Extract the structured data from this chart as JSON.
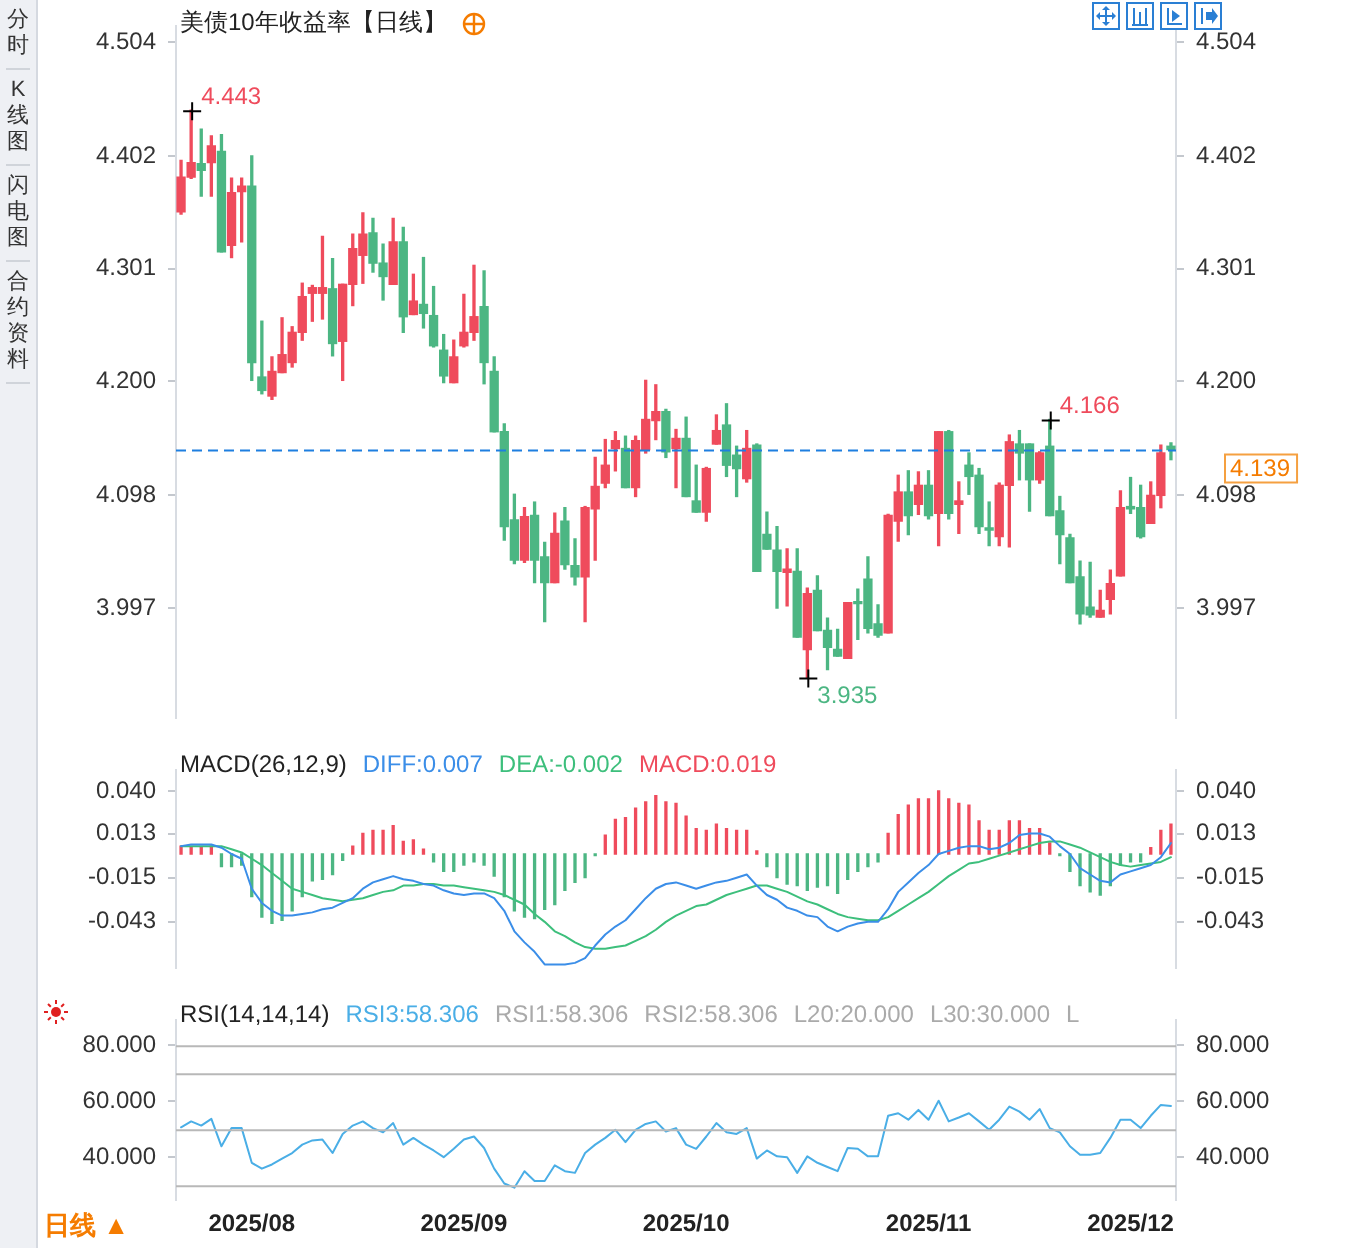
{
  "chart_data": [
    {
      "type": "candlestick",
      "title": "美债10年收益率【日线】",
      "categories": [
        null,
        null,
        null,
        null,
        null,
        null,
        null,
        null,
        null,
        null,
        null,
        null,
        null,
        null,
        null,
        null,
        null,
        null,
        null,
        null,
        null,
        null,
        null,
        null,
        null,
        null,
        null,
        null,
        null,
        null,
        null,
        null,
        null,
        null,
        null,
        null,
        null,
        null,
        null,
        null,
        null,
        null,
        null,
        null,
        null,
        null,
        null,
        null,
        null,
        null,
        null,
        null,
        null,
        null,
        null,
        null,
        null,
        null,
        null,
        null,
        null,
        null,
        null,
        null,
        null,
        null,
        null,
        null,
        null,
        null,
        null,
        null,
        null,
        null,
        null,
        null,
        null,
        null,
        null,
        null,
        null,
        null,
        null,
        null,
        null,
        null,
        null,
        null,
        null,
        null,
        null,
        null,
        null,
        null,
        null,
        null,
        null,
        null,
        null
      ],
      "ohlc": [
        [
          4.352,
          4.398,
          4.35,
          4.383
        ],
        [
          4.383,
          4.443,
          4.382,
          4.396
        ],
        [
          4.395,
          4.426,
          4.366,
          4.389
        ],
        [
          4.396,
          4.42,
          4.366,
          4.411
        ],
        [
          4.406,
          4.421,
          4.316,
          4.316
        ],
        [
          4.322,
          4.382,
          4.311,
          4.369
        ],
        [
          4.37,
          4.382,
          4.325,
          4.375
        ],
        [
          4.375,
          4.402,
          4.201,
          4.217
        ],
        [
          4.204,
          4.254,
          4.189,
          4.192
        ],
        [
          4.187,
          4.222,
          4.184,
          4.209
        ],
        [
          4.208,
          4.257,
          4.208,
          4.224
        ],
        [
          4.217,
          4.249,
          4.213,
          4.244
        ],
        [
          4.244,
          4.288,
          4.237,
          4.276
        ],
        [
          4.279,
          4.286,
          4.254,
          4.284
        ],
        [
          4.279,
          4.33,
          4.256,
          4.284
        ],
        [
          4.283,
          4.31,
          4.223,
          4.234
        ],
        [
          4.236,
          4.287,
          4.201,
          4.287
        ],
        [
          4.287,
          4.332,
          4.268,
          4.319
        ],
        [
          4.313,
          4.351,
          4.288,
          4.332
        ],
        [
          4.333,
          4.346,
          4.298,
          4.306
        ],
        [
          4.306,
          4.323,
          4.273,
          4.294
        ],
        [
          4.287,
          4.346,
          4.287,
          4.325
        ],
        [
          4.325,
          4.338,
          4.244,
          4.258
        ],
        [
          4.26,
          4.296,
          4.26,
          4.272
        ],
        [
          4.269,
          4.311,
          4.248,
          4.261
        ],
        [
          4.259,
          4.285,
          4.231,
          4.232
        ],
        [
          4.228,
          4.242,
          4.199,
          4.205
        ],
        [
          4.199,
          4.237,
          4.199,
          4.222
        ],
        [
          4.232,
          4.278,
          4.231,
          4.244
        ],
        [
          4.244,
          4.304,
          4.237,
          4.258
        ],
        [
          4.267,
          4.299,
          4.198,
          4.217
        ],
        [
          4.209,
          4.222,
          4.155,
          4.155
        ],
        [
          4.155,
          4.162,
          4.058,
          4.07
        ],
        [
          4.076,
          4.099,
          4.037,
          4.04
        ],
        [
          4.04,
          4.087,
          4.038,
          4.079
        ],
        [
          4.08,
          4.092,
          4.02,
          4.04
        ],
        [
          4.043,
          4.056,
          3.985,
          4.02
        ],
        [
          4.02,
          4.082,
          4.02,
          4.064
        ],
        [
          4.075,
          4.087,
          4.032,
          4.036
        ],
        [
          4.035,
          4.059,
          4.018,
          4.025
        ],
        [
          4.025,
          4.088,
          3.985,
          4.087
        ],
        [
          4.086,
          4.132,
          4.04,
          4.106
        ],
        [
          4.109,
          4.148,
          4.105,
          4.125
        ],
        [
          4.14,
          4.155,
          4.12,
          4.147
        ],
        [
          4.14,
          4.151,
          4.105,
          4.105
        ],
        [
          4.105,
          4.151,
          4.097,
          4.147
        ],
        [
          4.139,
          4.201,
          4.136,
          4.166
        ],
        [
          4.165,
          4.197,
          4.148,
          4.173
        ],
        [
          4.173,
          4.175,
          4.132,
          4.137
        ],
        [
          4.14,
          4.157,
          4.105,
          4.149
        ],
        [
          4.149,
          4.168,
          4.097,
          4.097
        ],
        [
          4.093,
          4.125,
          4.083,
          4.083
        ],
        [
          4.083,
          4.123,
          4.075,
          4.122
        ],
        [
          4.144,
          4.17,
          4.144,
          4.156
        ],
        [
          4.161,
          4.18,
          4.115,
          4.125
        ],
        [
          4.134,
          4.142,
          4.097,
          4.122
        ],
        [
          4.113,
          4.156,
          4.11,
          4.14
        ],
        [
          4.143,
          4.144,
          4.03,
          4.03
        ],
        [
          4.063,
          4.083,
          4.05,
          4.05
        ],
        [
          4.049,
          4.07,
          3.997,
          4.03
        ],
        [
          4.029,
          4.05,
          3.999,
          4.032
        ],
        [
          4.03,
          4.05,
          3.971,
          3.971
        ],
        [
          3.96,
          4.015,
          3.935,
          4.01
        ],
        [
          4.013,
          4.026,
          3.977,
          3.977
        ],
        [
          3.977,
          3.988,
          3.942,
          3.962
        ],
        [
          3.96,
          3.978,
          3.954,
          3.954
        ],
        [
          3.952,
          4.002,
          3.952,
          4.002
        ],
        [
          4.002,
          4.014,
          3.969,
          4.001
        ],
        [
          4.023,
          4.043,
          3.975,
          3.979
        ],
        [
          3.983,
          4.0,
          3.971,
          3.973
        ],
        [
          3.975,
          4.081,
          3.975,
          4.08
        ],
        [
          4.075,
          4.116,
          4.057,
          4.101
        ],
        [
          4.101,
          4.12,
          4.063,
          4.08
        ],
        [
          4.09,
          4.119,
          4.081,
          4.107
        ],
        [
          4.107,
          4.12,
          4.077,
          4.08
        ],
        [
          4.082,
          4.155,
          4.053,
          4.155
        ],
        [
          4.155,
          4.156,
          4.077,
          4.082
        ],
        [
          4.09,
          4.11,
          4.064,
          4.093
        ],
        [
          4.125,
          4.136,
          4.099,
          4.115
        ],
        [
          4.116,
          4.122,
          4.064,
          4.07
        ],
        [
          4.068,
          4.092,
          4.053,
          4.067
        ],
        [
          4.061,
          4.109,
          4.053,
          4.107
        ],
        [
          4.107,
          4.152,
          4.052,
          4.146
        ],
        [
          4.144,
          4.156,
          4.112,
          4.136
        ],
        [
          4.144,
          4.144,
          4.084,
          4.112
        ],
        [
          4.112,
          4.137,
          4.109,
          4.136
        ],
        [
          4.142,
          4.166,
          4.08,
          4.08
        ],
        [
          4.084,
          4.097,
          4.037,
          4.063
        ],
        [
          4.06,
          4.063,
          4.02,
          4.02
        ],
        [
          4.025,
          4.039,
          3.983,
          3.992
        ],
        [
          3.998,
          4.038,
          3.989,
          3.991
        ],
        [
          3.989,
          4.013,
          3.989,
          3.995
        ],
        [
          4.005,
          4.031,
          3.992,
          4.019
        ],
        [
          4.026,
          4.102,
          4.026,
          4.087
        ],
        [
          4.088,
          4.114,
          4.082,
          4.086
        ],
        [
          4.087,
          4.107,
          4.06,
          4.061
        ],
        [
          4.073,
          4.11,
          4.073,
          4.098
        ],
        [
          4.098,
          4.143,
          4.087,
          4.136
        ],
        [
          4.142,
          4.145,
          4.13,
          4.139
        ]
      ],
      "colors": [
        "#ef4b5c",
        "#ef4b5c",
        "#4cb683",
        "#ef4b5c",
        "#4cb683",
        "#ef4b5c",
        "#ef4b5c",
        "#4cb683",
        "#4cb683",
        "#ef4b5c",
        "#ef4b5c",
        "#ef4b5c",
        "#ef4b5c",
        "#ef4b5c",
        "#ef4b5c",
        "#4cb683",
        "#ef4b5c",
        "#ef4b5c",
        "#ef4b5c",
        "#4cb683",
        "#4cb683",
        "#ef4b5c",
        "#4cb683",
        "#ef4b5c",
        "#4cb683",
        "#4cb683",
        "#4cb683",
        "#ef4b5c",
        "#ef4b5c",
        "#ef4b5c",
        "#4cb683",
        "#4cb683",
        "#4cb683",
        "#4cb683",
        "#ef4b5c",
        "#4cb683",
        "#4cb683",
        "#ef4b5c",
        "#4cb683",
        "#4cb683",
        "#ef4b5c",
        "#ef4b5c",
        "#ef4b5c",
        "#ef4b5c",
        "#4cb683",
        "#ef4b5c",
        "#ef4b5c",
        "#ef4b5c",
        "#4cb683",
        "#ef4b5c",
        "#4cb683",
        "#4cb683",
        "#ef4b5c",
        "#ef4b5c",
        "#4cb683",
        "#4cb683",
        "#ef4b5c",
        "#4cb683",
        "#4cb683",
        "#4cb683",
        "#ef4b5c",
        "#4cb683",
        "#ef4b5c",
        "#4cb683",
        "#4cb683",
        "#4cb683",
        "#ef4b5c",
        "#4cb683",
        "#4cb683",
        "#4cb683",
        "#ef4b5c",
        "#ef4b5c",
        "#4cb683",
        "#ef4b5c",
        "#4cb683",
        "#ef4b5c",
        "#4cb683",
        "#ef4b5c",
        "#4cb683",
        "#4cb683",
        "#4cb683",
        "#ef4b5c",
        "#ef4b5c",
        "#4cb683",
        "#4cb683",
        "#ef4b5c",
        "#4cb683",
        "#4cb683",
        "#4cb683",
        "#4cb683",
        "#4cb683",
        "#ef4b5c",
        "#ef4b5c",
        "#ef4b5c",
        "#4cb683",
        "#4cb683",
        "#ef4b5c",
        "#ef4b5c",
        "#4cb683"
      ],
      "ylim": [
        3.899,
        4.518
      ],
      "yticks": [
        4.504,
        4.402,
        4.301,
        {
          "value": 4.2,
          "label": "4.200"
        },
        4.098,
        3.997
      ],
      "y2lim": [
        3.899,
        4.518
      ],
      "y2ticks": [
        4.504,
        4.402,
        4.301,
        {
          "value": 4.2,
          "label": "4.200"
        },
        4.098,
        3.997
      ],
      "tick_labels": "y",
      "ref_lines": [
        {
          "axis": "y",
          "value": 4.139,
          "label": "4.139",
          "color": "#1e7fe0",
          "line_style": "dashed"
        }
      ],
      "annotations": [
        "4.443",
        "4.166",
        "3.935",
        "分时",
        "K线图",
        "闪电图",
        "合约资料",
        "日线 ▲"
      ]
    },
    {
      "type": "bar",
      "title": "MACD(26,12,9)",
      "categories": [
        null,
        null,
        null,
        null,
        null,
        null,
        null,
        null,
        null,
        null,
        null,
        null,
        null,
        null,
        null,
        null,
        null,
        null,
        null,
        null,
        null,
        null,
        null,
        null,
        null,
        null,
        null,
        null,
        null,
        null,
        null,
        null,
        null,
        null,
        null,
        null,
        null,
        null,
        null,
        null,
        null,
        null,
        null,
        null,
        null,
        null,
        null,
        null,
        null,
        null,
        null,
        null,
        null,
        null,
        null,
        null,
        null,
        null,
        null,
        null,
        null,
        null,
        null,
        null,
        null,
        null,
        null,
        null,
        null,
        null,
        null,
        null,
        null,
        null,
        null,
        null,
        null,
        null,
        null,
        null,
        null,
        null,
        null,
        null,
        null,
        null,
        null,
        null,
        null,
        null,
        null,
        null,
        null,
        null,
        null,
        null,
        null,
        null,
        null
      ],
      "series": [
        {
          "name": "DIFF:0.007",
          "type": "line",
          "color": "#3b8ee8",
          "values": [
            0.005,
            0.006,
            0.006,
            0.006,
            0.004,
            0.0,
            -0.003,
            -0.022,
            -0.031,
            -0.036,
            -0.039,
            -0.039,
            -0.038,
            -0.037,
            -0.035,
            -0.034,
            -0.031,
            -0.028,
            -0.022,
            -0.018,
            -0.016,
            -0.014,
            -0.016,
            -0.017,
            -0.019,
            -0.02,
            -0.023,
            -0.025,
            -0.026,
            -0.025,
            -0.025,
            -0.028,
            -0.036,
            -0.049,
            -0.056,
            -0.062,
            -0.07,
            -0.07,
            -0.07,
            -0.069,
            -0.066,
            -0.058,
            -0.051,
            -0.046,
            -0.042,
            -0.035,
            -0.028,
            -0.022,
            -0.019,
            -0.018,
            -0.02,
            -0.022,
            -0.02,
            -0.018,
            -0.017,
            -0.015,
            -0.013,
            -0.02,
            -0.026,
            -0.029,
            -0.034,
            -0.036,
            -0.039,
            -0.04,
            -0.046,
            -0.049,
            -0.046,
            -0.044,
            -0.043,
            -0.043,
            -0.035,
            -0.024,
            -0.018,
            -0.012,
            -0.007,
            0.0,
            0.002,
            0.004,
            0.005,
            0.005,
            0.003,
            0.004,
            0.007,
            0.012,
            0.013,
            0.013,
            0.011,
            0.005,
            0.0,
            -0.009,
            -0.013,
            -0.017,
            -0.018,
            -0.013,
            -0.011,
            -0.009,
            -0.007,
            -0.002,
            0.007
          ]
        },
        {
          "name": "DEA:-0.002",
          "type": "line",
          "color": "#3dbf7c",
          "values": [
            0.005,
            0.005,
            0.005,
            0.005,
            0.005,
            0.003,
            0.001,
            -0.003,
            -0.007,
            -0.012,
            -0.017,
            -0.022,
            -0.024,
            -0.026,
            -0.028,
            -0.029,
            -0.03,
            -0.029,
            -0.028,
            -0.026,
            -0.024,
            -0.023,
            -0.02,
            -0.02,
            -0.019,
            -0.019,
            -0.02,
            -0.02,
            -0.021,
            -0.022,
            -0.023,
            -0.024,
            -0.026,
            -0.029,
            -0.032,
            -0.038,
            -0.043,
            -0.049,
            -0.052,
            -0.056,
            -0.059,
            -0.06,
            -0.06,
            -0.059,
            -0.058,
            -0.055,
            -0.052,
            -0.048,
            -0.043,
            -0.039,
            -0.036,
            -0.033,
            -0.032,
            -0.029,
            -0.026,
            -0.024,
            -0.022,
            -0.02,
            -0.02,
            -0.022,
            -0.024,
            -0.027,
            -0.03,
            -0.032,
            -0.035,
            -0.038,
            -0.04,
            -0.041,
            -0.042,
            -0.042,
            -0.04,
            -0.036,
            -0.032,
            -0.028,
            -0.024,
            -0.019,
            -0.014,
            -0.01,
            -0.006,
            -0.005,
            -0.003,
            -0.001,
            0.001,
            0.003,
            0.005,
            0.007,
            0.008,
            0.008,
            0.006,
            0.004,
            0.001,
            -0.002,
            -0.005,
            -0.007,
            -0.008,
            -0.007,
            -0.006,
            -0.005,
            -0.002
          ]
        },
        {
          "name": "MACD:0.019",
          "values": [
            0.005,
            0.004,
            0.004,
            0.005,
            -0.008,
            -0.008,
            -0.007,
            -0.027,
            -0.04,
            -0.044,
            -0.042,
            -0.036,
            -0.027,
            -0.017,
            -0.016,
            -0.013,
            -0.004,
            0.005,
            0.013,
            0.015,
            0.015,
            0.018,
            0.008,
            0.009,
            0.003,
            -0.005,
            -0.011,
            -0.011,
            -0.007,
            -0.005,
            -0.007,
            -0.014,
            -0.027,
            -0.036,
            -0.04,
            -0.041,
            -0.035,
            -0.032,
            -0.023,
            -0.018,
            -0.015,
            -0.001,
            0.012,
            0.022,
            0.023,
            0.029,
            0.033,
            0.037,
            0.033,
            0.032,
            0.024,
            0.016,
            0.015,
            0.019,
            0.016,
            0.015,
            0.015,
            0.002,
            -0.008,
            -0.015,
            -0.019,
            -0.02,
            -0.023,
            -0.021,
            -0.02,
            -0.025,
            -0.016,
            -0.011,
            -0.008,
            -0.005,
            0.013,
            0.025,
            0.031,
            0.035,
            0.035,
            0.04,
            0.035,
            0.032,
            0.031,
            0.021,
            0.015,
            0.015,
            0.021,
            0.021,
            0.016,
            0.016,
            0.007,
            -0.001,
            -0.011,
            -0.02,
            -0.024,
            -0.026,
            -0.02,
            -0.007,
            -0.005,
            -0.005,
            0.004,
            0.015,
            0.019
          ],
          "colors": [
            "#ef4b5c",
            "#ef4b5c",
            "#ef4b5c",
            "#ef4b5c",
            "#4cb683",
            "#4cb683",
            "#4cb683",
            "#4cb683",
            "#4cb683",
            "#4cb683",
            "#4cb683",
            "#4cb683",
            "#4cb683",
            "#4cb683",
            "#4cb683",
            "#4cb683",
            "#4cb683",
            "#ef4b5c",
            "#ef4b5c",
            "#ef4b5c",
            "#ef4b5c",
            "#ef4b5c",
            "#ef4b5c",
            "#ef4b5c",
            "#ef4b5c",
            "#4cb683",
            "#4cb683",
            "#4cb683",
            "#4cb683",
            "#4cb683",
            "#4cb683",
            "#4cb683",
            "#4cb683",
            "#4cb683",
            "#4cb683",
            "#4cb683",
            "#4cb683",
            "#4cb683",
            "#4cb683",
            "#4cb683",
            "#4cb683",
            "#4cb683",
            "#ef4b5c",
            "#ef4b5c",
            "#ef4b5c",
            "#ef4b5c",
            "#ef4b5c",
            "#ef4b5c",
            "#ef4b5c",
            "#ef4b5c",
            "#ef4b5c",
            "#ef4b5c",
            "#ef4b5c",
            "#ef4b5c",
            "#ef4b5c",
            "#ef4b5c",
            "#ef4b5c",
            "#ef4b5c",
            "#4cb683",
            "#4cb683",
            "#4cb683",
            "#4cb683",
            "#4cb683",
            "#4cb683",
            "#4cb683",
            "#4cb683",
            "#4cb683",
            "#4cb683",
            "#4cb683",
            "#4cb683",
            "#ef4b5c",
            "#ef4b5c",
            "#ef4b5c",
            "#ef4b5c",
            "#ef4b5c",
            "#ef4b5c",
            "#ef4b5c",
            "#ef4b5c",
            "#ef4b5c",
            "#ef4b5c",
            "#ef4b5c",
            "#ef4b5c",
            "#ef4b5c",
            "#ef4b5c",
            "#ef4b5c",
            "#ef4b5c",
            "#ef4b5c",
            "#4cb683",
            "#4cb683",
            "#4cb683",
            "#4cb683",
            "#4cb683",
            "#4cb683",
            "#4cb683",
            "#4cb683",
            "#4cb683",
            "#ef4b5c",
            "#ef4b5c",
            "#ef4b5c"
          ]
        }
      ],
      "ylim": [
        -0.072,
        0.053
      ],
      "yticks": [
        {
          "value": 0.04,
          "label": "0.040"
        },
        0.013,
        -0.015,
        -0.043
      ],
      "y2lim": [
        -0.072,
        0.053
      ],
      "y2ticks": [
        {
          "value": 0.04,
          "label": "0.040"
        },
        0.013,
        -0.015,
        -0.043
      ],
      "tick_labels": "y"
    },
    {
      "type": "line",
      "title": "RSI(14,14,14)",
      "categories": [
        null,
        null,
        null,
        null,
        null,
        null,
        null,
        "2025/08",
        null,
        null,
        null,
        null,
        null,
        null,
        null,
        null,
        null,
        null,
        null,
        null,
        null,
        null,
        null,
        null,
        null,
        null,
        null,
        null,
        "2025/09",
        null,
        null,
        null,
        null,
        null,
        null,
        null,
        null,
        null,
        null,
        null,
        null,
        null,
        null,
        null,
        null,
        null,
        null,
        null,
        null,
        null,
        "2025/10",
        null,
        null,
        null,
        null,
        null,
        null,
        null,
        null,
        null,
        null,
        null,
        null,
        null,
        null,
        null,
        null,
        null,
        null,
        null,
        null,
        null,
        null,
        null,
        "2025/11",
        null,
        null,
        null,
        null,
        null,
        null,
        null,
        null,
        null,
        null,
        null,
        null,
        null,
        null,
        null,
        null,
        null,
        null,
        null,
        "2025/12",
        null,
        null,
        null,
        null
      ],
      "series": [
        {
          "name": "RSI3:58.306",
          "color": "#4aaee6",
          "values": [
            50.7,
            52.8,
            51.3,
            53.7,
            43.9,
            50.4,
            50.4,
            38.0,
            35.9,
            37.4,
            39.5,
            41.5,
            44.5,
            46.0,
            46.3,
            41.5,
            48.3,
            51.3,
            52.8,
            50.4,
            48.9,
            52.2,
            44.5,
            46.9,
            44.5,
            42.4,
            40.0,
            43.0,
            46.3,
            47.4,
            43.3,
            35.9,
            30.6,
            29.1,
            35.0,
            31.5,
            31.5,
            37.1,
            35.0,
            34.4,
            41.5,
            44.5,
            46.9,
            49.8,
            45.4,
            49.8,
            51.9,
            52.8,
            49.2,
            50.4,
            44.5,
            43.0,
            47.4,
            52.2,
            48.9,
            48.3,
            50.4,
            39.5,
            42.4,
            40.3,
            40.0,
            34.4,
            40.3,
            38.0,
            36.5,
            35.0,
            43.3,
            43.0,
            40.3,
            40.3,
            54.8,
            55.7,
            53.4,
            56.9,
            53.4,
            60.2,
            52.8,
            54.2,
            55.7,
            52.8,
            49.8,
            53.4,
            58.1,
            56.3,
            53.4,
            57.2,
            50.4,
            48.9,
            43.9,
            40.9,
            40.9,
            41.5,
            46.9,
            53.4,
            53.4,
            50.4,
            54.8,
            58.7,
            58.3
          ]
        }
      ],
      "ylim": [
        24.7,
        88.9
      ],
      "yticks": [
        {
          "value": 80,
          "label": "80.000"
        },
        {
          "value": 60,
          "label": "60.000"
        },
        {
          "value": 40,
          "label": "40.000"
        }
      ],
      "y2lim": [
        24.7,
        88.9
      ],
      "y2ticks": [
        {
          "value": 80,
          "label": "80.000"
        },
        {
          "value": 60,
          "label": "60.000"
        },
        {
          "value": 40,
          "label": "40.000"
        }
      ],
      "ref_lines": [
        {
          "axis": "y",
          "value": 80,
          "color": "#b8b8b8"
        },
        {
          "axis": "y",
          "value": 70,
          "color": "#b8b8b8"
        },
        {
          "axis": "y",
          "value": 50,
          "color": "#b8b8b8"
        },
        {
          "axis": "y",
          "value": 30,
          "color": "#b8b8b8"
        }
      ],
      "annotations": [
        "RSI1:58.306",
        "RSI2:58.306",
        "L20:20.000",
        "L30:30.000",
        "L"
      ]
    }
  ]
}
